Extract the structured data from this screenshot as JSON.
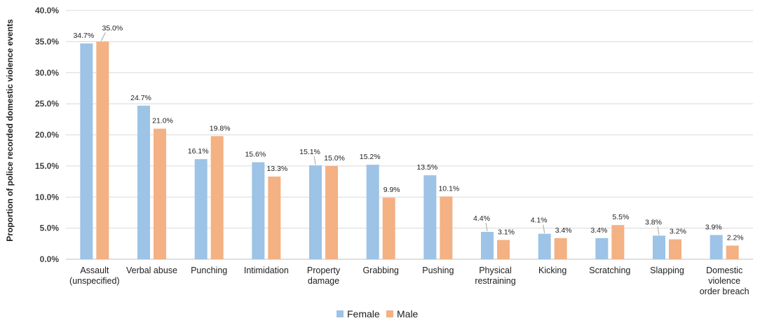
{
  "chart_data": {
    "type": "bar",
    "title": "",
    "xlabel": "",
    "ylabel": "Proportion of police recorded domestic violence events",
    "ylim": [
      0,
      40
    ],
    "yticks": [
      "0.0%",
      "5.0%",
      "10.0%",
      "15.0%",
      "20.0%",
      "25.0%",
      "30.0%",
      "35.0%",
      "40.0%"
    ],
    "categories": [
      [
        "Assault",
        "(unspecified)"
      ],
      [
        "Verbal abuse"
      ],
      [
        "Punching"
      ],
      [
        "Intimidation"
      ],
      [
        "Property",
        "damage"
      ],
      [
        "Grabbing"
      ],
      [
        "Pushing"
      ],
      [
        "Physical",
        "restraining"
      ],
      [
        "Kicking"
      ],
      [
        "Scratching"
      ],
      [
        "Slapping"
      ],
      [
        "Domestic",
        "violence",
        "order breach"
      ]
    ],
    "series": [
      {
        "name": "Female",
        "color": "#9DC3E6",
        "values": [
          34.7,
          24.7,
          16.1,
          15.6,
          15.1,
          15.2,
          13.5,
          4.4,
          4.1,
          3.4,
          3.8,
          3.9
        ],
        "labels": [
          "34.7%",
          "24.7%",
          "16.1%",
          "15.6%",
          "15.1%",
          "15.2%",
          "13.5%",
          "4.4%",
          "4.1%",
          "3.4%",
          "3.8%",
          "3.9%"
        ]
      },
      {
        "name": "Male",
        "color": "#F4B183",
        "values": [
          35.0,
          21.0,
          19.8,
          13.3,
          15.0,
          9.9,
          10.1,
          3.1,
          3.4,
          5.5,
          3.2,
          2.2
        ],
        "labels": [
          "35.0%",
          "21.0%",
          "19.8%",
          "13.3%",
          "15.0%",
          "9.9%",
          "10.1%",
          "3.1%",
          "3.4%",
          "5.5%",
          "3.2%",
          "2.2%"
        ]
      }
    ],
    "grid": true,
    "legend_position": "bottom"
  }
}
